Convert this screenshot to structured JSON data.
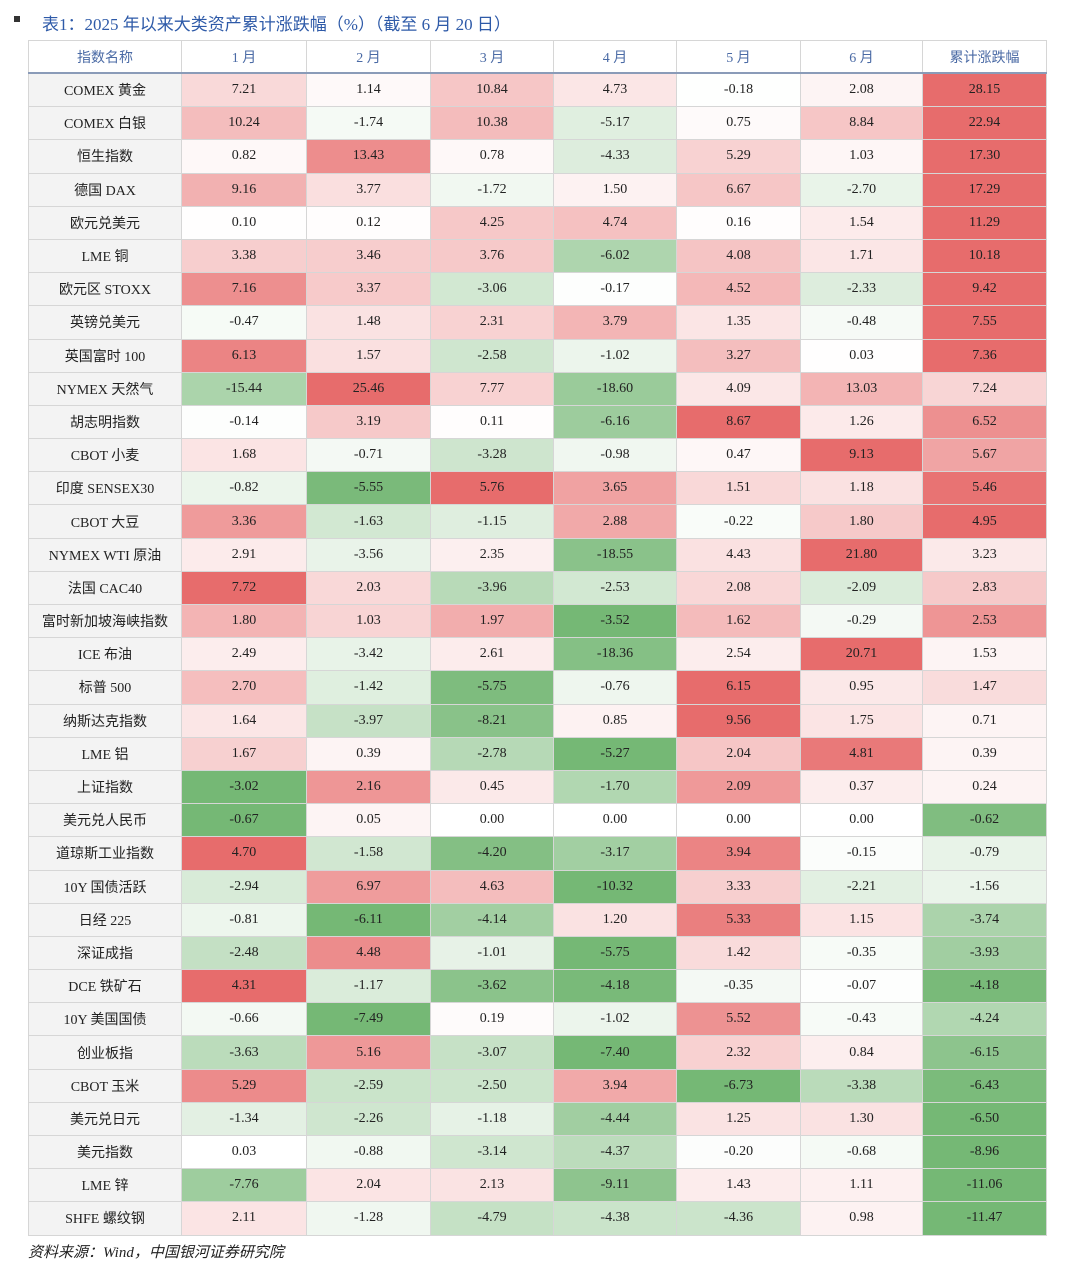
{
  "title": "表1：2025 年以来大类资产累计涨跌幅（%）（截至 6 月 20 日）",
  "table": {
    "header": [
      "指数名称",
      "1 月",
      "2 月",
      "3 月",
      "4 月",
      "5 月",
      "6 月",
      "累计涨跌幅"
    ],
    "rows": [
      [
        "COMEX 黄金",
        "7.21",
        "1.14",
        "10.84",
        "4.73",
        "-0.18",
        "2.08",
        "28.15"
      ],
      [
        "COMEX 白银",
        "10.24",
        "-1.74",
        "10.38",
        "-5.17",
        "0.75",
        "8.84",
        "22.94"
      ],
      [
        "恒生指数",
        "0.82",
        "13.43",
        "0.78",
        "-4.33",
        "5.29",
        "1.03",
        "17.30"
      ],
      [
        "德国 DAX",
        "9.16",
        "3.77",
        "-1.72",
        "1.50",
        "6.67",
        "-2.70",
        "17.29"
      ],
      [
        "欧元兑美元",
        "0.10",
        "0.12",
        "4.25",
        "4.74",
        "0.16",
        "1.54",
        "11.29"
      ],
      [
        "LME 铜",
        "3.38",
        "3.46",
        "3.76",
        "-6.02",
        "4.08",
        "1.71",
        "10.18"
      ],
      [
        "欧元区 STOXX",
        "7.16",
        "3.37",
        "-3.06",
        "-0.17",
        "4.52",
        "-2.33",
        "9.42"
      ],
      [
        "英镑兑美元",
        "-0.47",
        "1.48",
        "2.31",
        "3.79",
        "1.35",
        "-0.48",
        "7.55"
      ],
      [
        "英国富时 100",
        "6.13",
        "1.57",
        "-2.58",
        "-1.02",
        "3.27",
        "0.03",
        "7.36"
      ],
      [
        "NYMEX 天然气",
        "-15.44",
        "25.46",
        "7.77",
        "-18.60",
        "4.09",
        "13.03",
        "7.24"
      ],
      [
        "胡志明指数",
        "-0.14",
        "3.19",
        "0.11",
        "-6.16",
        "8.67",
        "1.26",
        "6.52"
      ],
      [
        "CBOT 小麦",
        "1.68",
        "-0.71",
        "-3.28",
        "-0.98",
        "0.47",
        "9.13",
        "5.67"
      ],
      [
        "印度 SENSEX30",
        "-0.82",
        "-5.55",
        "5.76",
        "3.65",
        "1.51",
        "1.18",
        "5.46"
      ],
      [
        "CBOT 大豆",
        "3.36",
        "-1.63",
        "-1.15",
        "2.88",
        "-0.22",
        "1.80",
        "4.95"
      ],
      [
        "NYMEX WTI 原油",
        "2.91",
        "-3.56",
        "2.35",
        "-18.55",
        "4.43",
        "21.80",
        "3.23"
      ],
      [
        "法国 CAC40",
        "7.72",
        "2.03",
        "-3.96",
        "-2.53",
        "2.08",
        "-2.09",
        "2.83"
      ],
      [
        "富时新加坡海峡指数",
        "1.80",
        "1.03",
        "1.97",
        "-3.52",
        "1.62",
        "-0.29",
        "2.53"
      ],
      [
        "ICE 布油",
        "2.49",
        "-3.42",
        "2.61",
        "-18.36",
        "2.54",
        "20.71",
        "1.53"
      ],
      [
        "标普 500",
        "2.70",
        "-1.42",
        "-5.75",
        "-0.76",
        "6.15",
        "0.95",
        "1.47"
      ],
      [
        "纳斯达克指数",
        "1.64",
        "-3.97",
        "-8.21",
        "0.85",
        "9.56",
        "1.75",
        "0.71"
      ],
      [
        "LME 铝",
        "1.67",
        "0.39",
        "-2.78",
        "-5.27",
        "2.04",
        "4.81",
        "0.39"
      ],
      [
        "上证指数",
        "-3.02",
        "2.16",
        "0.45",
        "-1.70",
        "2.09",
        "0.37",
        "0.24"
      ],
      [
        "美元兑人民币",
        "-0.67",
        "0.05",
        "0.00",
        "0.00",
        "0.00",
        "0.00",
        "-0.62"
      ],
      [
        "道琼斯工业指数",
        "4.70",
        "-1.58",
        "-4.20",
        "-3.17",
        "3.94",
        "-0.15",
        "-0.79"
      ],
      [
        "10Y 国债活跃",
        "-2.94",
        "6.97",
        "4.63",
        "-10.32",
        "3.33",
        "-2.21",
        "-1.56"
      ],
      [
        "日经 225",
        "-0.81",
        "-6.11",
        "-4.14",
        "1.20",
        "5.33",
        "1.15",
        "-3.74"
      ],
      [
        "深证成指",
        "-2.48",
        "4.48",
        "-1.01",
        "-5.75",
        "1.42",
        "-0.35",
        "-3.93"
      ],
      [
        "DCE 铁矿石",
        "4.31",
        "-1.17",
        "-3.62",
        "-4.18",
        "-0.35",
        "-0.07",
        "-4.18"
      ],
      [
        "10Y  美国国债",
        "-0.66",
        "-7.49",
        "0.19",
        "-1.02",
        "5.52",
        "-0.43",
        "-4.24"
      ],
      [
        "创业板指",
        "-3.63",
        "5.16",
        "-3.07",
        "-7.40",
        "2.32",
        "0.84",
        "-6.15"
      ],
      [
        "CBOT 玉米",
        "5.29",
        "-2.59",
        "-2.50",
        "3.94",
        "-6.73",
        "-3.38",
        "-6.43"
      ],
      [
        "美元兑日元",
        "-1.34",
        "-2.26",
        "-1.18",
        "-4.44",
        "1.25",
        "1.30",
        "-6.50"
      ],
      [
        "美元指数",
        "0.03",
        "-0.88",
        "-3.14",
        "-4.37",
        "-0.20",
        "-0.68",
        "-8.96"
      ],
      [
        "LME 锌",
        "-7.76",
        "2.04",
        "2.13",
        "-9.11",
        "1.43",
        "1.11",
        "-11.06"
      ],
      [
        "SHFE 螺纹钢",
        "2.11",
        "-1.28",
        "-4.79",
        "-4.38",
        "-4.36",
        "0.98",
        "-11.47"
      ]
    ]
  },
  "source": "资料来源：Wind，中国银河证券研究院"
}
